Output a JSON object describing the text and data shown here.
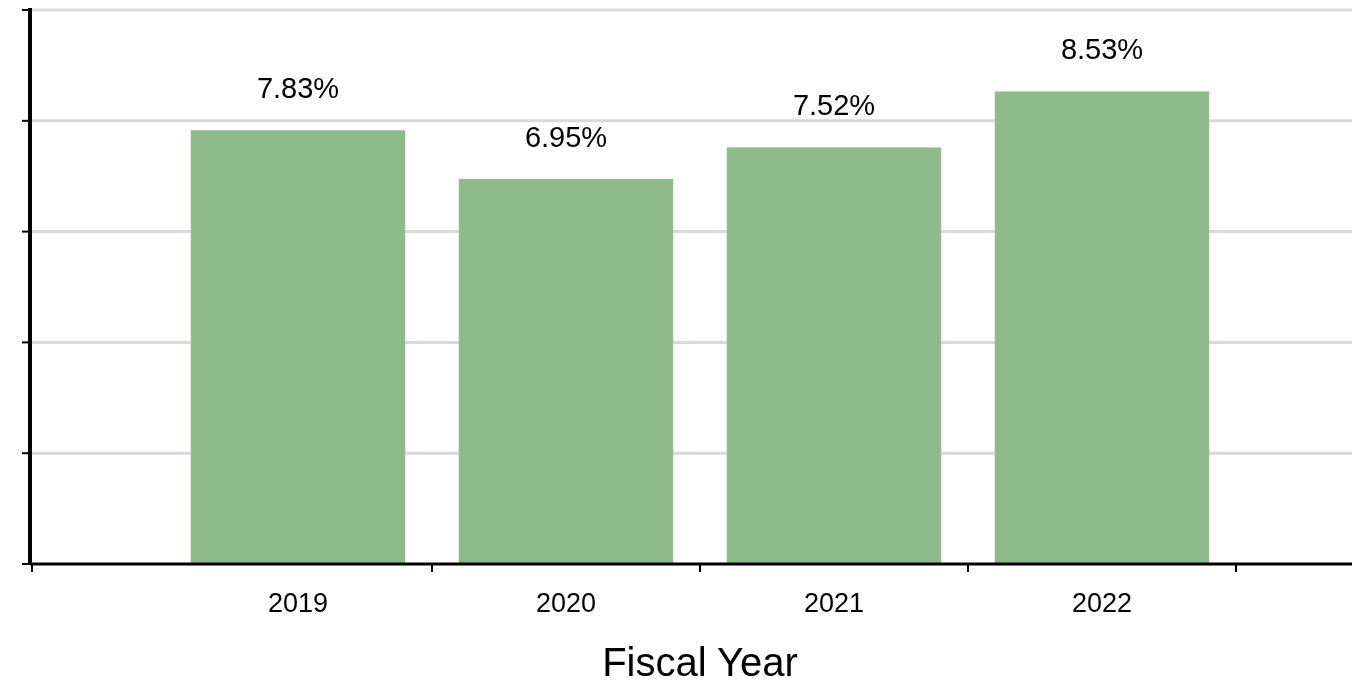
{
  "chart_data": {
    "type": "bar",
    "xlabel": "Fiscal Year",
    "categories": [
      "2019",
      "2020",
      "2021",
      "2022"
    ],
    "values": [
      7.83,
      6.95,
      7.52,
      8.53
    ],
    "value_labels": [
      "7.83%",
      "6.95%",
      "7.52%",
      "8.53%"
    ],
    "color": "#8fbb8a",
    "ylim": [
      0,
      10
    ],
    "yticks": [
      {
        "value": 0,
        "label": null
      },
      {
        "value": 2,
        "label": null
      },
      {
        "value": 4,
        "label": null
      },
      {
        "value": 6,
        "label": null
      },
      {
        "value": 8,
        "label": null
      },
      {
        "value": 10,
        "label": null
      }
    ],
    "grid": "y"
  }
}
